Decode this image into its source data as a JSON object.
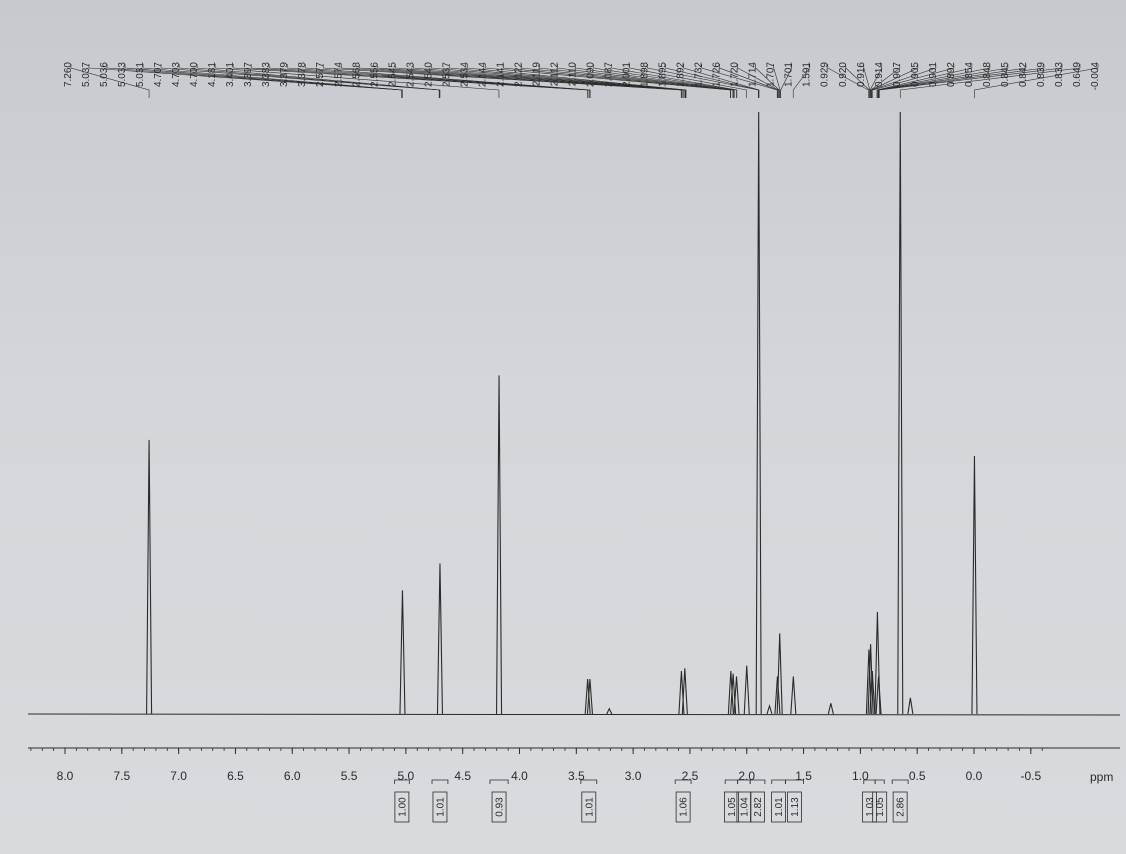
{
  "chart_data": {
    "type": "line",
    "xlabel": "ppm",
    "xlim": [
      8.3,
      -0.6
    ],
    "x_axis_reversed": true,
    "grid": false,
    "colors": {
      "trace": "#2b2b2b",
      "paper": "#d3d6da"
    },
    "x_ticks": [
      "8.0",
      "7.5",
      "7.0",
      "6.5",
      "6.0",
      "5.5",
      "5.0",
      "4.5",
      "4.0",
      "3.5",
      "3.0",
      "2.5",
      "2.0",
      "1.5",
      "1.0",
      "0.5",
      "0.0",
      "-0.5"
    ],
    "peak_labels": [
      "7.260",
      "5.037",
      "5.036",
      "5.033",
      "5.031",
      "4.707",
      "4.703",
      "4.700",
      "4.181",
      "3.401",
      "3.397",
      "3.383",
      "3.379",
      "3.378",
      "2.577",
      "2.574",
      "2.568",
      "2.556",
      "2.545",
      "2.543",
      "2.540",
      "2.537",
      "2.534",
      "2.144",
      "2.141",
      "2.122",
      "2.119",
      "2.112",
      "2.110",
      "2.090",
      "2.087",
      "2.001",
      "1.898",
      "1.895",
      "1.892",
      "1.732",
      "1.726",
      "1.720",
      "1.714",
      "1.707",
      "1.701",
      "1.591",
      "0.929",
      "0.920",
      "0.916",
      "0.914",
      "0.907",
      "0.905",
      "0.901",
      "0.892",
      "0.854",
      "0.848",
      "0.845",
      "0.842",
      "0.839",
      "0.833",
      "0.649",
      "-0.004"
    ],
    "peaks": [
      {
        "x": 7.26,
        "y": 0.51
      },
      {
        "x": 5.03,
        "y": 0.23
      },
      {
        "x": 4.7,
        "y": 0.28
      },
      {
        "x": 4.18,
        "y": 0.63
      },
      {
        "x": 3.4,
        "y": 0.065
      },
      {
        "x": 3.38,
        "y": 0.065
      },
      {
        "x": 3.21,
        "y": 0.01
      },
      {
        "x": 2.575,
        "y": 0.08
      },
      {
        "x": 2.545,
        "y": 0.085
      },
      {
        "x": 2.14,
        "y": 0.08
      },
      {
        "x": 2.12,
        "y": 0.075
      },
      {
        "x": 2.09,
        "y": 0.07
      },
      {
        "x": 2.0,
        "y": 0.09
      },
      {
        "x": 1.895,
        "y": 1.12
      },
      {
        "x": 1.8,
        "y": 0.015
      },
      {
        "x": 1.73,
        "y": 0.07
      },
      {
        "x": 1.71,
        "y": 0.15
      },
      {
        "x": 1.59,
        "y": 0.07
      },
      {
        "x": 1.26,
        "y": 0.02
      },
      {
        "x": 0.925,
        "y": 0.12
      },
      {
        "x": 0.91,
        "y": 0.13
      },
      {
        "x": 0.895,
        "y": 0.08
      },
      {
        "x": 0.85,
        "y": 0.19
      },
      {
        "x": 0.84,
        "y": 0.07
      },
      {
        "x": 0.649,
        "y": 1.12
      },
      {
        "x": 0.56,
        "y": 0.03
      },
      {
        "x": -0.004,
        "y": 0.48
      }
    ],
    "integrals": [
      {
        "value": "1.00",
        "x_from": 5.1,
        "x_to": 4.97
      },
      {
        "value": "1.01",
        "x_from": 4.77,
        "x_to": 4.63
      },
      {
        "value": "0.93",
        "x_from": 4.26,
        "x_to": 4.1
      },
      {
        "value": "1.01",
        "x_from": 3.46,
        "x_to": 3.32
      },
      {
        "value": "1.06",
        "x_from": 2.63,
        "x_to": 2.49
      },
      {
        "value": "1.05",
        "x_from": 2.19,
        "x_to": 2.08
      },
      {
        "value": "1.04",
        "x_from": 2.08,
        "x_to": 1.97
      },
      {
        "value": "2.82",
        "x_from": 1.97,
        "x_to": 1.84
      },
      {
        "value": "1.01",
        "x_from": 1.78,
        "x_to": 1.66
      },
      {
        "value": "1.13",
        "x_from": 1.66,
        "x_to": 1.5
      },
      {
        "value": "1.03",
        "x_from": 0.97,
        "x_to": 0.87
      },
      {
        "value": "1.05",
        "x_from": 0.87,
        "x_to": 0.79
      },
      {
        "value": "2.86",
        "x_from": 0.72,
        "x_to": 0.58
      }
    ]
  }
}
